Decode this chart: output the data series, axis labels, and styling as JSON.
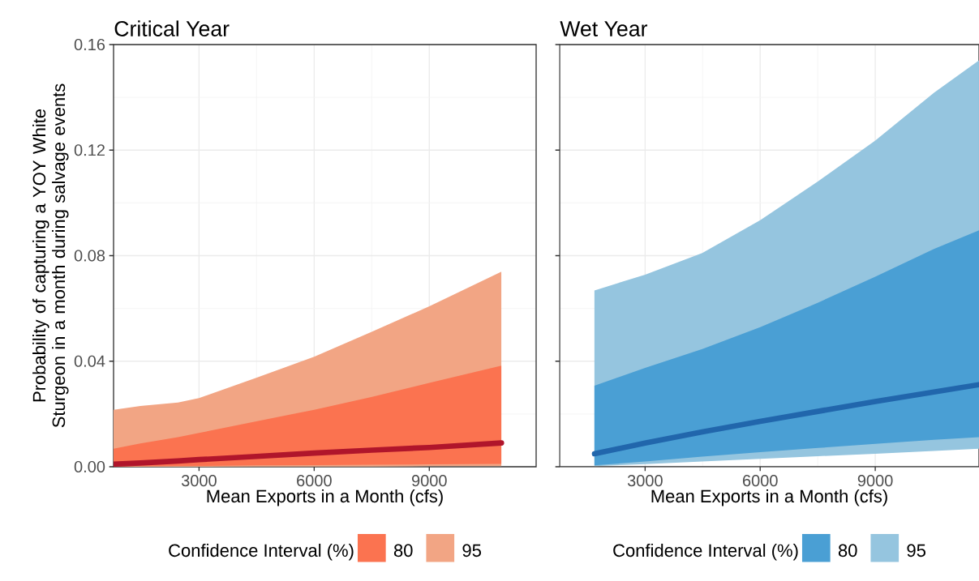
{
  "chart_data": [
    {
      "type": "line",
      "title": "Critical Year",
      "xlabel": "Mean Exports in a Month (cfs)",
      "ylabel": "Probability of capturing a YOY White Sturgeon in a month during salvage events",
      "legend_title": "Confidence Interval (%)",
      "legend": "bottom",
      "grid": true,
      "x": [
        772,
        1470,
        2450,
        3000,
        4490,
        6000,
        7510,
        9000,
        10880
      ],
      "xlim": [
        772,
        11784
      ],
      "xticks": [
        3000,
        6000,
        9000
      ],
      "ylim": [
        0,
        0.16
      ],
      "yticks": [
        {
          "value": 0,
          "label": "0.00"
        },
        {
          "value": 0.04,
          "label": "0.04"
        },
        {
          "value": 0.08,
          "label": "0.08"
        },
        {
          "value": 0.12,
          "label": "0.12"
        },
        {
          "value": 0.16,
          "label": "0.16"
        }
      ],
      "series": [
        {
          "name": "95",
          "color": "#f2a584",
          "values": [
            null,
            null,
            null,
            null,
            null,
            null,
            null,
            null,
            null
          ],
          "lower": [
            0,
            0,
            0,
            0,
            0.0001,
            0.0001,
            0.0001,
            0.0002,
            0.0002
          ],
          "upper": [
            0.0216,
            0.023,
            0.0243,
            0.026,
            0.0337,
            0.0417,
            0.0512,
            0.0608,
            0.0739
          ]
        },
        {
          "name": "80",
          "color": "#fb7350",
          "values": [
            null,
            null,
            null,
            null,
            null,
            null,
            null,
            null,
            null
          ],
          "lower": [
            0.0001,
            0.0002,
            0.0003,
            0.0003,
            0.0005,
            0.0006,
            0.0008,
            0.0009,
            0.0011
          ],
          "upper": [
            0.0068,
            0.0088,
            0.0112,
            0.0128,
            0.0172,
            0.0216,
            0.0265,
            0.0318,
            0.0383
          ]
        },
        {
          "color": "#b0152b",
          "values": [
            0.001,
            0.0014,
            0.0022,
            0.0027,
            0.0039,
            0.0052,
            0.0063,
            0.0073,
            0.009
          ]
        }
      ]
    },
    {
      "type": "line",
      "title": "Wet Year",
      "xlabel": "Mean Exports in a Month (cfs)",
      "legend_title": "Confidence Interval (%)",
      "legend": "bottom",
      "grid": true,
      "tick_labels": "x",
      "x": [
        1678,
        3000,
        4490,
        6000,
        7510,
        9000,
        10530,
        11705
      ],
      "xlim": [
        772,
        11705
      ],
      "xticks": [
        3000,
        6000,
        9000
      ],
      "ylim": [
        0,
        0.16
      ],
      "yticks": [
        0,
        0.04,
        0.08,
        0.12,
        0.16
      ],
      "series": [
        {
          "name": "95",
          "color": "#95c5df",
          "values": [
            null,
            null,
            null,
            null,
            null,
            null,
            null,
            null
          ],
          "lower": [
            0.0002,
            0.001,
            0.002,
            0.003,
            0.004,
            0.0049,
            0.006,
            0.0068
          ],
          "upper": [
            0.0668,
            0.0728,
            0.081,
            0.0934,
            0.1082,
            0.1236,
            0.1417,
            0.154
          ]
        },
        {
          "name": "80",
          "color": "#4a9fd4",
          "values": [
            null,
            null,
            null,
            null,
            null,
            null,
            null,
            null
          ],
          "lower": [
            0.0005,
            0.002,
            0.0038,
            0.0055,
            0.0071,
            0.0087,
            0.0102,
            0.0112
          ],
          "upper": [
            0.0307,
            0.0375,
            0.0446,
            0.0529,
            0.0622,
            0.072,
            0.0825,
            0.0896
          ]
        },
        {
          "color": "#2166ac",
          "values": [
            0.0049,
            0.009,
            0.0132,
            0.0172,
            0.021,
            0.0247,
            0.0283,
            0.0311
          ]
        }
      ]
    }
  ]
}
